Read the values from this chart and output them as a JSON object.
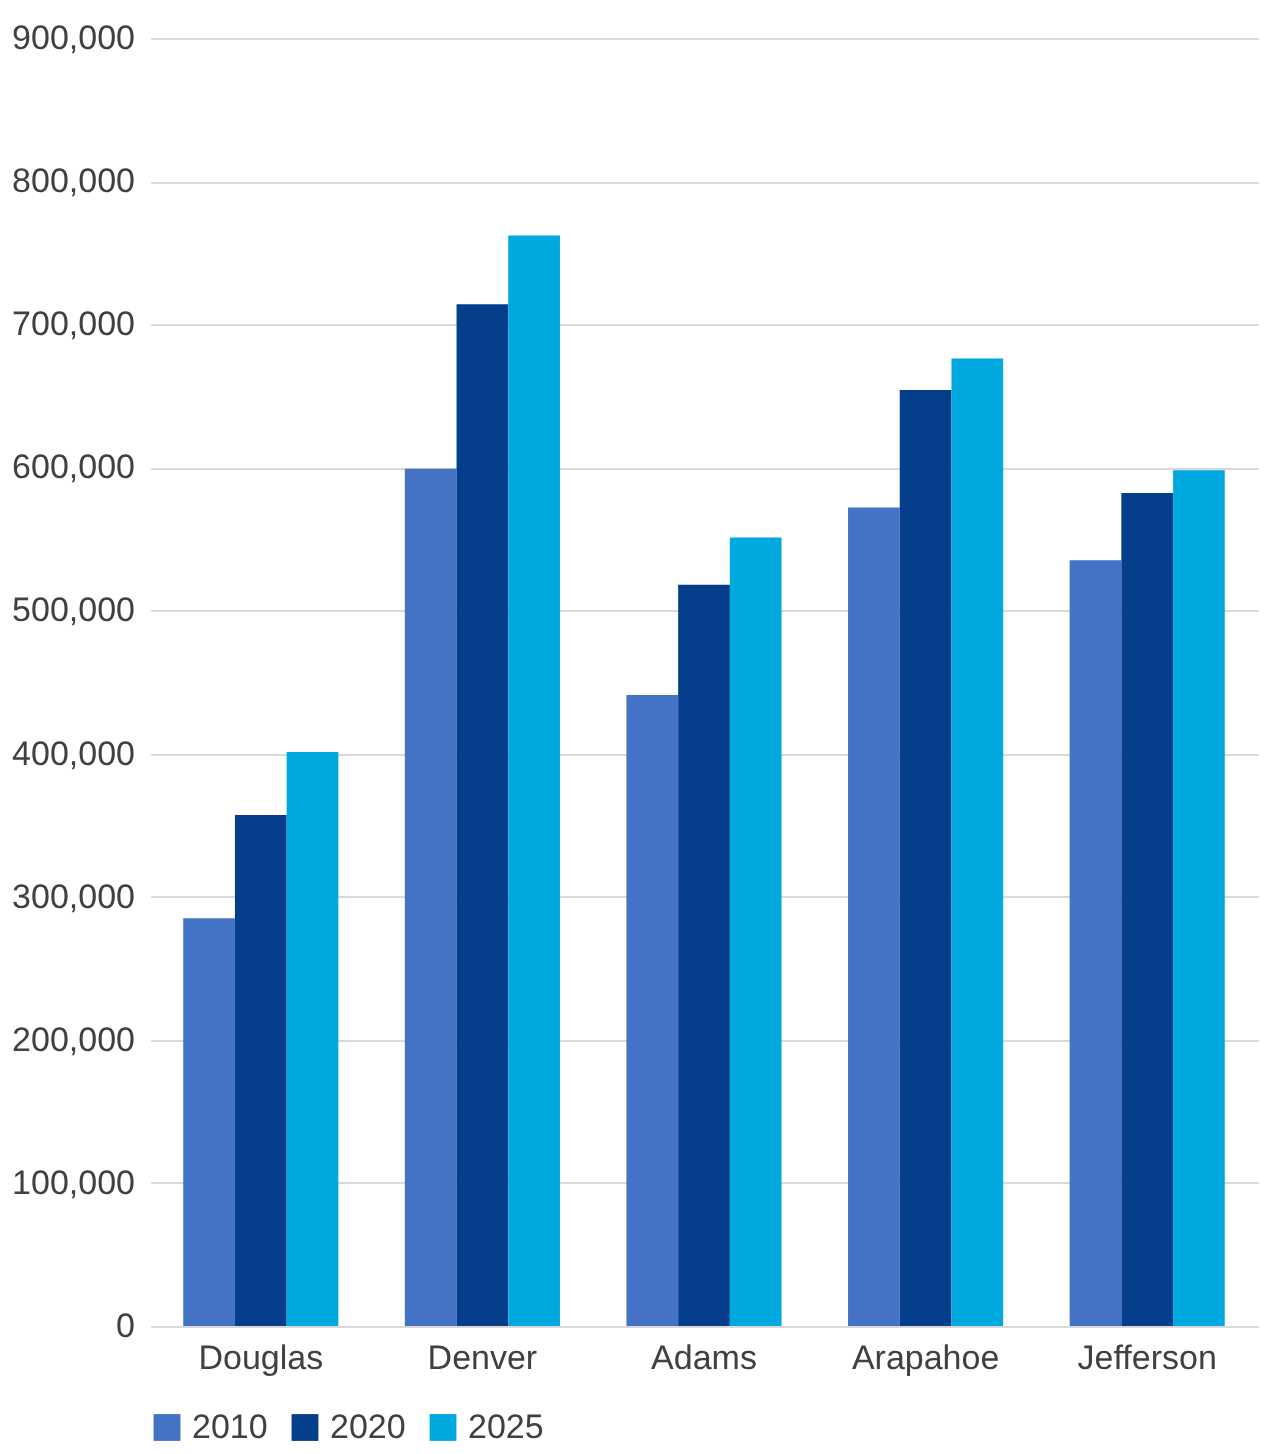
{
  "chart_data": {
    "type": "bar",
    "categories": [
      "Douglas",
      "Denver",
      "Adams",
      "Arapahoe",
      "Jefferson"
    ],
    "series": [
      {
        "name": "2010",
        "color": "#4472c4",
        "values": [
          285000,
          599000,
          441000,
          572000,
          535000
        ]
      },
      {
        "name": "2020",
        "color": "#053f8c",
        "values": [
          357000,
          714000,
          518000,
          654000,
          582000
        ]
      },
      {
        "name": "2025",
        "color": "#00a8e0",
        "values": [
          401000,
          762000,
          551000,
          676000,
          598000
        ]
      }
    ],
    "ylim": [
      0,
      900000
    ],
    "yticks": [
      0,
      {
        "value": 100000,
        "label": "100,000"
      },
      {
        "value": 200000,
        "label": "200,000"
      },
      {
        "value": 300000,
        "label": "300,000"
      },
      {
        "value": 400000,
        "label": "400,000"
      },
      {
        "value": 500000,
        "label": "500,000"
      },
      {
        "value": 600000,
        "label": "600,000"
      },
      {
        "value": 700000,
        "label": "700,000"
      },
      {
        "value": 800000,
        "label": "800,000"
      },
      {
        "value": 900000,
        "label": "900,000"
      }
    ],
    "grid": "y",
    "legend": "bottom"
  }
}
